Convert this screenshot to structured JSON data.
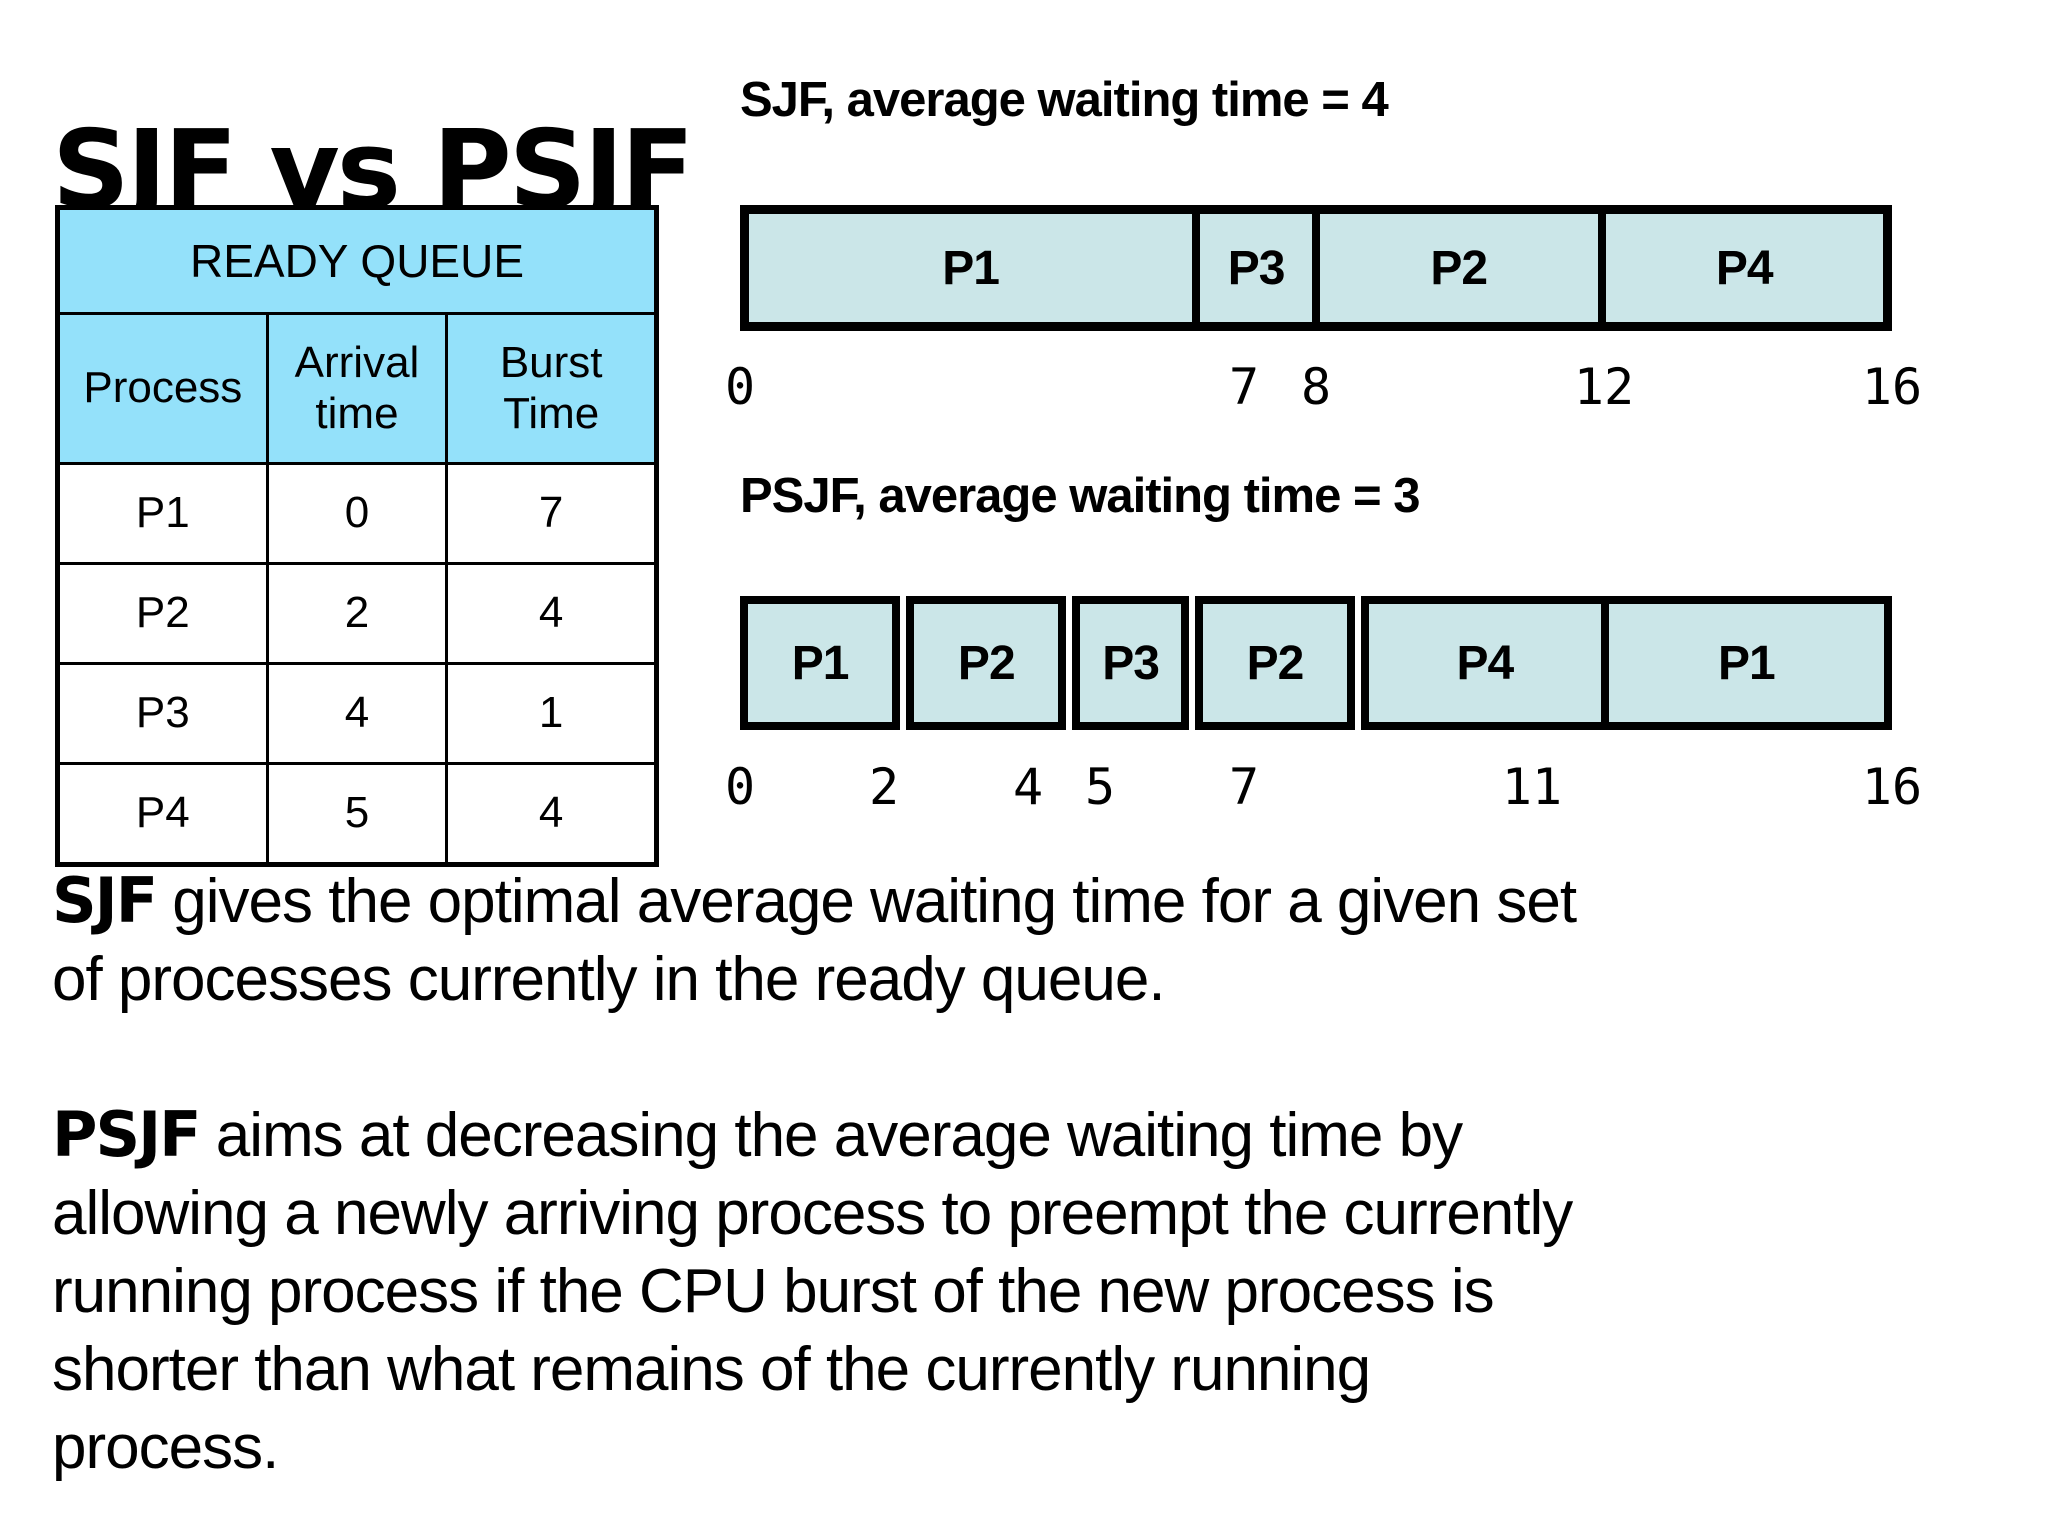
{
  "title": "SJF vs PSJF",
  "colors": {
    "table_header_bg": "#94e1fa",
    "bar_fill": "#cbe6e8",
    "border": "#000000",
    "background": "#ffffff"
  },
  "ready_queue_table": {
    "title": "READY QUEUE",
    "columns": [
      "Process",
      "Arrival\ntime",
      "Burst\nTime"
    ],
    "rows": [
      [
        "P1",
        "0",
        "7"
      ],
      [
        "P2",
        "2",
        "4"
      ],
      [
        "P3",
        "4",
        "1"
      ],
      [
        "P4",
        "5",
        "4"
      ]
    ]
  },
  "chart_data": [
    {
      "type": "gantt",
      "title": "SJF, average waiting time = 4",
      "xlim": [
        0,
        16
      ],
      "bar_style": "single",
      "segments": [
        {
          "label": "P1",
          "start": 0,
          "end": 7
        },
        {
          "label": "P3",
          "start": 7,
          "end": 8
        },
        {
          "label": "P2",
          "start": 8,
          "end": 12
        },
        {
          "label": "P4",
          "start": 12,
          "end": 16
        }
      ],
      "ticks": [
        0,
        7,
        8,
        12,
        16
      ]
    },
    {
      "type": "gantt",
      "title": "PSJF, average waiting time = 3",
      "xlim": [
        0,
        16
      ],
      "bar_style": "separate_boxes",
      "gaps_after": [
        true,
        true,
        true,
        true,
        false
      ],
      "merge_last": true,
      "segments": [
        {
          "label": "P1",
          "start": 0,
          "end": 2
        },
        {
          "label": "P2",
          "start": 2,
          "end": 4
        },
        {
          "label": "P3",
          "start": 4,
          "end": 5
        },
        {
          "label": "P2",
          "start": 5,
          "end": 7
        },
        {
          "label": "P4",
          "start": 7,
          "end": 11
        },
        {
          "label": "P1",
          "start": 11,
          "end": 16
        }
      ],
      "ticks": [
        0,
        2,
        4,
        5,
        7,
        11,
        16
      ]
    }
  ],
  "paragraphs": [
    {
      "lead": "SJF",
      "text": " gives the optimal average waiting time for a given set\nof processes currently in the ready queue."
    },
    {
      "lead": "PSJF",
      "text": " aims at decreasing the average waiting time by\nallowing a newly arriving process to preempt the currently\nrunning process if the CPU burst of the new process is\nshorter than what remains of the currently running\nprocess."
    }
  ]
}
